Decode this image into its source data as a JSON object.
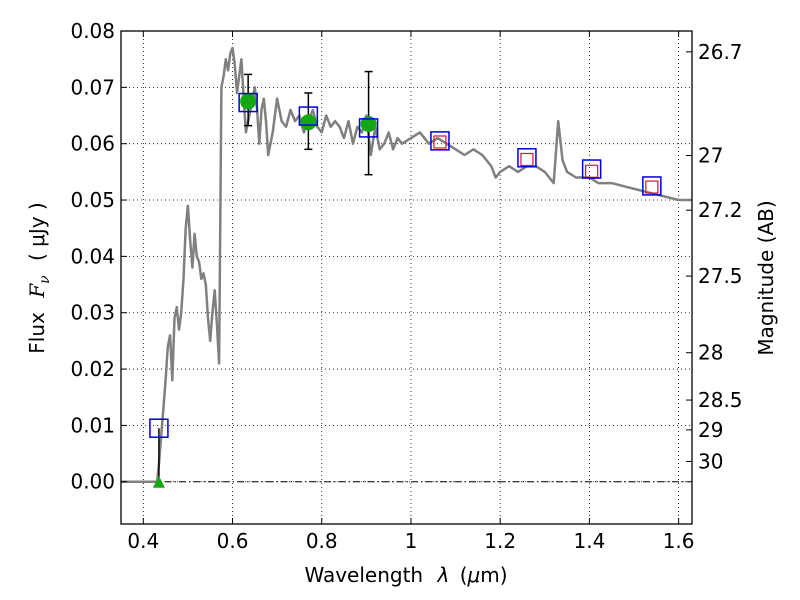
{
  "chart_data": {
    "type": "scatter",
    "xlabel": "Wavelength",
    "xlabel_symbol": "λ",
    "xlabel_unit_open": "(",
    "xlabel_unit_mu": "μ",
    "xlabel_unit_rest": "m)",
    "ylabel": "Flux",
    "ylabel_symbol": "F",
    "ylabel_subscript": "ν",
    "ylabel_unit": "(  μJy )",
    "y2label": "Magnitude (AB)",
    "xlim": [
      0.35,
      1.63
    ],
    "ylim": [
      -0.0075,
      0.08
    ],
    "grid": true,
    "x_ticks": [
      0.4,
      0.6,
      0.8,
      1.0,
      1.2,
      1.4,
      1.6
    ],
    "x_tick_labels": [
      "0.4",
      "0.6",
      "0.8",
      "1",
      "1.2",
      "1.4",
      "1.6"
    ],
    "y_ticks": [
      0.0,
      0.01,
      0.02,
      0.03,
      0.04,
      0.05,
      0.06,
      0.07,
      0.08
    ],
    "y_tick_labels": [
      "0.00",
      "0.01",
      "0.02",
      "0.03",
      "0.04",
      "0.05",
      "0.06",
      "0.07",
      "0.08"
    ],
    "y2_ticks": [
      {
        "label": "26.7",
        "flux": 0.0763
      },
      {
        "label": "27",
        "flux": 0.0579
      },
      {
        "label": "27.2",
        "flux": 0.0482
      },
      {
        "label": "27.5",
        "flux": 0.0365
      },
      {
        "label": "28",
        "flux": 0.0229
      },
      {
        "label": "28.5",
        "flux": 0.0145
      },
      {
        "label": "29",
        "flux": 0.0092
      },
      {
        "label": "30",
        "flux": 0.0036
      }
    ],
    "zero_line": 0.0,
    "colors": {
      "model": "#808080",
      "detections": "#13a813",
      "model_photometry": "#0000dd",
      "observed_red": "#dd1133",
      "errorbars": "#000000"
    },
    "series": [
      {
        "kind": "model_spectrum",
        "x": [
          0.35,
          0.42,
          0.431,
          0.435,
          0.44,
          0.445,
          0.45,
          0.455,
          0.46,
          0.465,
          0.47,
          0.475,
          0.48,
          0.485,
          0.49,
          0.495,
          0.5,
          0.505,
          0.51,
          0.515,
          0.52,
          0.525,
          0.53,
          0.535,
          0.54,
          0.545,
          0.55,
          0.555,
          0.56,
          0.565,
          0.57,
          0.575,
          0.58,
          0.585,
          0.59,
          0.595,
          0.6,
          0.605,
          0.61,
          0.615,
          0.62,
          0.625,
          0.63,
          0.64,
          0.65,
          0.655,
          0.66,
          0.665,
          0.67,
          0.675,
          0.68,
          0.69,
          0.7,
          0.71,
          0.72,
          0.73,
          0.74,
          0.75,
          0.76,
          0.77,
          0.78,
          0.79,
          0.8,
          0.81,
          0.82,
          0.83,
          0.84,
          0.85,
          0.86,
          0.87,
          0.88,
          0.89,
          0.9,
          0.91,
          0.92,
          0.93,
          0.94,
          0.95,
          0.96,
          0.97,
          0.98,
          1.0,
          1.02,
          1.04,
          1.06,
          1.08,
          1.1,
          1.12,
          1.14,
          1.16,
          1.18,
          1.19,
          1.2,
          1.22,
          1.24,
          1.26,
          1.28,
          1.3,
          1.32,
          1.33,
          1.34,
          1.35,
          1.37,
          1.4,
          1.42,
          1.45,
          1.5,
          1.55,
          1.6,
          1.63
        ],
        "y": [
          0.0,
          0.0,
          0.0,
          0.003,
          0.008,
          0.013,
          0.018,
          0.024,
          0.026,
          0.018,
          0.029,
          0.031,
          0.027,
          0.03,
          0.036,
          0.045,
          0.049,
          0.043,
          0.038,
          0.044,
          0.04,
          0.039,
          0.036,
          0.037,
          0.035,
          0.029,
          0.025,
          0.03,
          0.034,
          0.028,
          0.021,
          0.07,
          0.072,
          0.075,
          0.073,
          0.076,
          0.077,
          0.074,
          0.069,
          0.072,
          0.075,
          0.068,
          0.062,
          0.066,
          0.07,
          0.066,
          0.06,
          0.066,
          0.068,
          0.064,
          0.058,
          0.062,
          0.068,
          0.064,
          0.063,
          0.066,
          0.064,
          0.065,
          0.062,
          0.064,
          0.066,
          0.063,
          0.062,
          0.065,
          0.063,
          0.064,
          0.063,
          0.061,
          0.064,
          0.06,
          0.063,
          0.062,
          0.065,
          0.058,
          0.063,
          0.059,
          0.06,
          0.062,
          0.059,
          0.061,
          0.06,
          0.061,
          0.062,
          0.06,
          0.061,
          0.06,
          0.059,
          0.058,
          0.059,
          0.058,
          0.056,
          0.054,
          0.055,
          0.056,
          0.055,
          0.056,
          0.056,
          0.055,
          0.053,
          0.064,
          0.057,
          0.055,
          0.054,
          0.054,
          0.053,
          0.053,
          0.052,
          0.051,
          0.05,
          0.05
        ]
      },
      {
        "kind": "model_photometry",
        "marker": "open-square",
        "x": [
          0.435,
          0.635,
          0.77,
          0.905,
          1.065,
          1.26,
          1.405,
          1.54
        ],
        "y": [
          0.0095,
          0.0673,
          0.0649,
          0.0628,
          0.0605,
          0.0575,
          0.0555,
          0.0525
        ]
      },
      {
        "kind": "detections",
        "marker": "filled-circle",
        "x": [
          0.635,
          0.77,
          0.905
        ],
        "y": [
          0.0675,
          0.0638,
          0.0635
        ],
        "yerr_low": [
          0.0043,
          0.0048,
          0.009
        ],
        "yerr_high": [
          0.0048,
          0.0052,
          0.0093
        ]
      },
      {
        "kind": "non_detection",
        "marker": "filled-triangle",
        "x": [
          0.435
        ],
        "y": [
          0.0
        ],
        "yerr_high": [
          0.0095
        ]
      },
      {
        "kind": "observed_upper",
        "marker": "small-open-square",
        "x": [
          1.065,
          1.26,
          1.405,
          1.54
        ],
        "y": [
          0.0603,
          0.0572,
          0.0551,
          0.0523
        ]
      }
    ]
  }
}
